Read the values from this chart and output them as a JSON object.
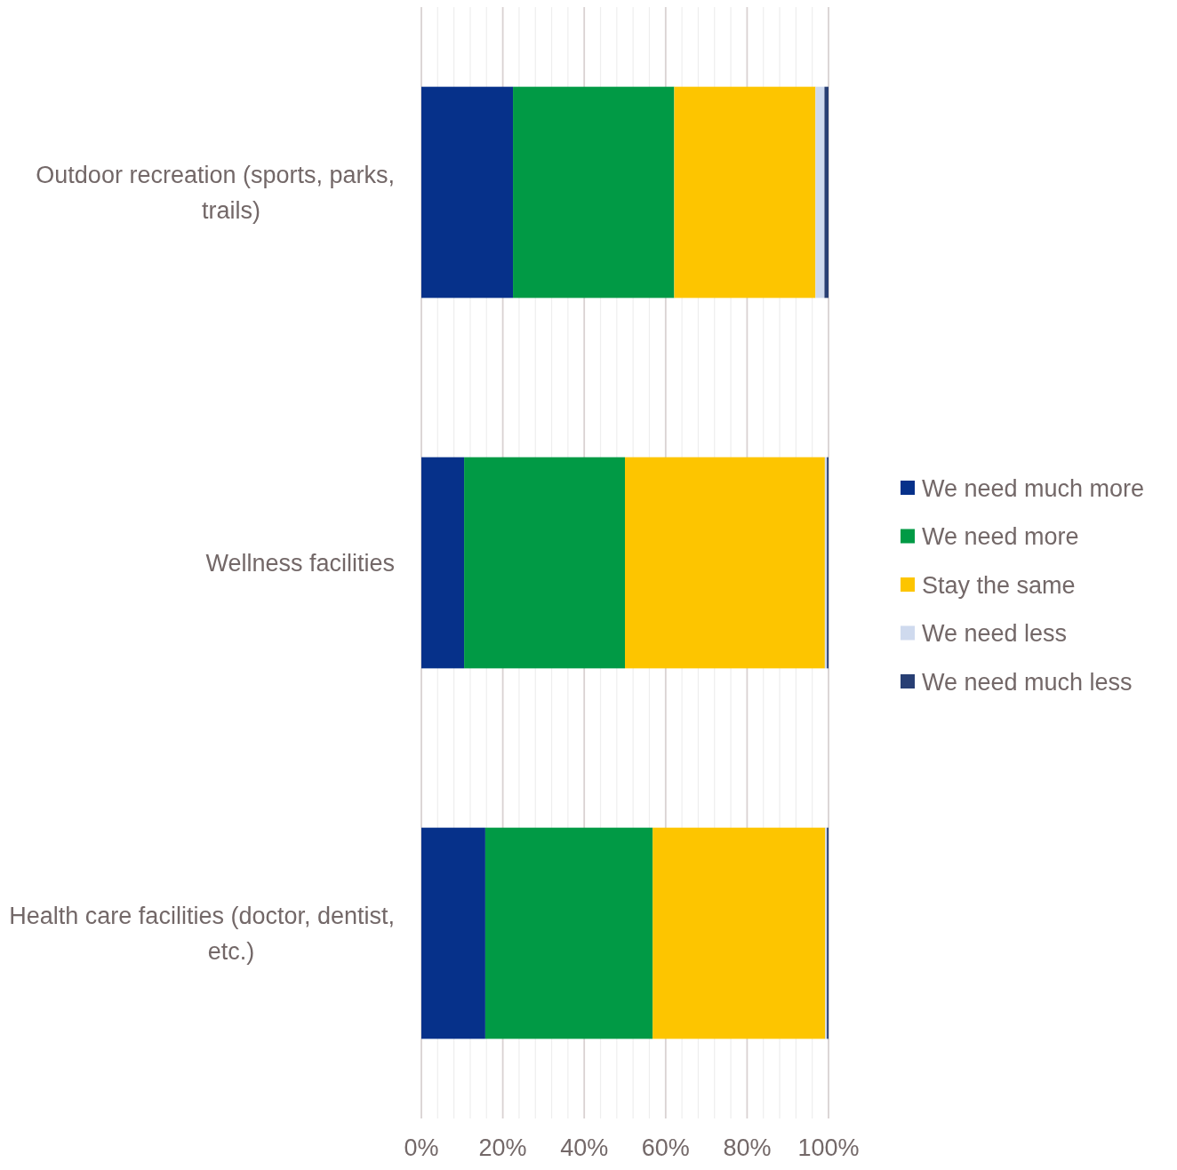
{
  "chart_data": {
    "type": "bar",
    "orientation": "horizontal",
    "stacked": true,
    "categories": [
      "Outdoor recreation (sports, parks, trails)",
      "Wellness facilities",
      "Health care facilities (doctor, dentist, etc.)"
    ],
    "series": [
      {
        "name": "We need much more",
        "color": "#06318a",
        "values": [
          22.5,
          10.5,
          15.7
        ]
      },
      {
        "name": "We need more",
        "color": "#019a45",
        "values": [
          39.6,
          39.5,
          41.1
        ]
      },
      {
        "name": "Stay the same",
        "color": "#fdc500",
        "values": [
          34.7,
          49.1,
          42.4
        ]
      },
      {
        "name": "We need less",
        "color": "#cfdaee",
        "values": [
          2.2,
          0.5,
          0.4
        ]
      },
      {
        "name": "We need much less",
        "color": "#283f74",
        "values": [
          1.0,
          0.4,
          0.4
        ]
      }
    ],
    "xlim": [
      0,
      100
    ],
    "xticks": [
      {
        "value": 0,
        "label": "0%"
      },
      {
        "value": 4,
        "label": null
      },
      {
        "value": 8,
        "label": null
      },
      {
        "value": 12,
        "label": null
      },
      {
        "value": 16,
        "label": null
      },
      {
        "value": 20,
        "label": "20%"
      },
      {
        "value": 24,
        "label": null
      },
      {
        "value": 28,
        "label": null
      },
      {
        "value": 32,
        "label": null
      },
      {
        "value": 36,
        "label": null
      },
      {
        "value": 40,
        "label": "40%"
      },
      {
        "value": 44,
        "label": null
      },
      {
        "value": 48,
        "label": null
      },
      {
        "value": 52,
        "label": null
      },
      {
        "value": 56,
        "label": null
      },
      {
        "value": 60,
        "label": "60%"
      },
      {
        "value": 64,
        "label": null
      },
      {
        "value": 68,
        "label": null
      },
      {
        "value": 72,
        "label": null
      },
      {
        "value": 76,
        "label": null
      },
      {
        "value": 80,
        "label": "80%"
      },
      {
        "value": 84,
        "label": null
      },
      {
        "value": 88,
        "label": null
      },
      {
        "value": 92,
        "label": null
      },
      {
        "value": 96,
        "label": null
      },
      {
        "value": 100,
        "label": "100%"
      }
    ],
    "grid": "x",
    "legend": "right"
  }
}
